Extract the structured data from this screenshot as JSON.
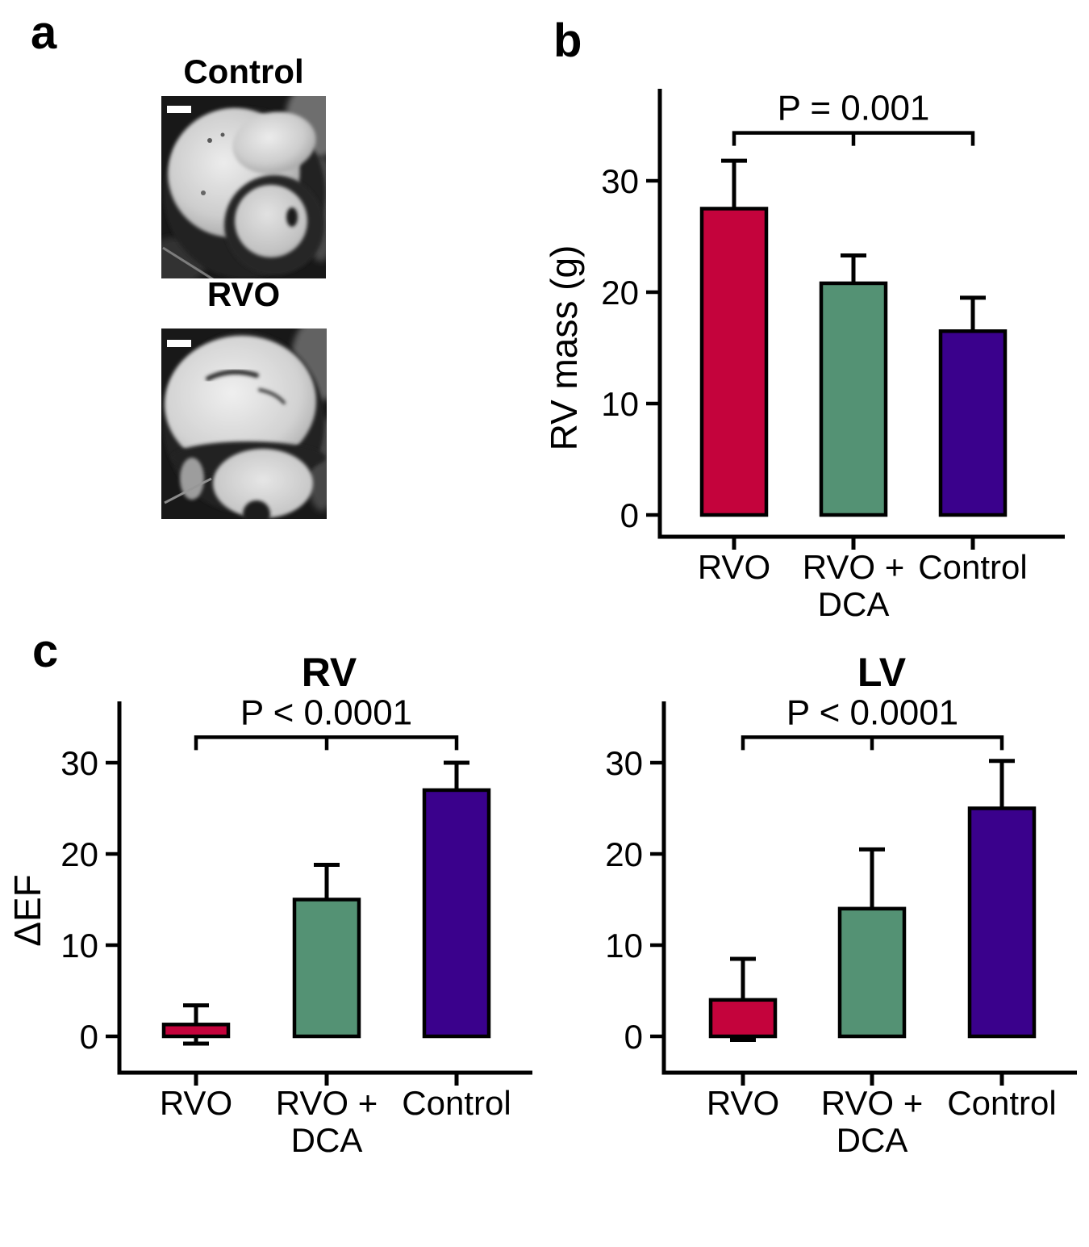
{
  "panel_a": {
    "label": "a",
    "image1_title": "Control",
    "image2_title": "RVO"
  },
  "panel_b": {
    "label": "b"
  },
  "panel_c": {
    "label": "c"
  },
  "colors": {
    "rvo_bar": "#c4033c",
    "rvo_dca_bar": "#549274",
    "control_bar": "#3a018c",
    "axis": "#000000",
    "scale_bar": "#ffffff"
  },
  "chart_data": [
    {
      "id": "rv_mass",
      "panel": "b",
      "type": "bar",
      "title": "",
      "ylabel": "RV mass (g)",
      "xlabel": "",
      "categories": [
        "RVO",
        "RVO +\nDCA",
        "Control"
      ],
      "values": [
        27.5,
        20.8,
        16.5
      ],
      "errors_up": [
        4.3,
        2.5,
        3.0
      ],
      "errors_down": [
        0,
        0,
        0
      ],
      "bar_colors": [
        "#c4033c",
        "#549274",
        "#3a018c"
      ],
      "yticks": [
        0,
        10,
        20,
        30
      ],
      "ylim": [
        -2,
        38
      ],
      "grid": false,
      "legend": "none",
      "significance": {
        "label": "P = 0.001",
        "from": 0,
        "to": 2,
        "mid_tick": 1,
        "y_value": 34.3
      }
    },
    {
      "id": "delta_ef_rv",
      "panel": "c",
      "type": "bar",
      "title": "RV",
      "ylabel": "ΔEF",
      "xlabel": "",
      "categories": [
        "RVO",
        "RVO +\nDCA",
        "Control"
      ],
      "values": [
        1.3,
        15,
        27
      ],
      "errors_up": [
        2.1,
        3.8,
        3.0
      ],
      "errors_down": [
        2.1,
        0,
        0
      ],
      "bar_colors": [
        "#c4033c",
        "#549274",
        "#3a018c"
      ],
      "yticks": [
        0,
        10,
        20,
        30
      ],
      "ylim": [
        -4,
        37
      ],
      "grid": false,
      "legend": "none",
      "significance": {
        "label": "P < 0.0001",
        "from": 0,
        "to": 2,
        "mid_tick": 1,
        "y_value": 32.8
      }
    },
    {
      "id": "delta_ef_lv",
      "panel": "c",
      "type": "bar",
      "title": "LV",
      "ylabel": "",
      "xlabel": "",
      "categories": [
        "RVO",
        "RVO +\nDCA",
        "Control"
      ],
      "values": [
        4,
        14,
        25
      ],
      "errors_up": [
        4.5,
        6.5,
        5.2
      ],
      "errors_down": [
        4.4,
        0,
        0
      ],
      "bar_colors": [
        "#c4033c",
        "#549274",
        "#3a018c"
      ],
      "yticks": [
        0,
        10,
        20,
        30
      ],
      "ylim": [
        -4,
        37
      ],
      "grid": false,
      "legend": "none",
      "significance": {
        "label": "P < 0.0001",
        "from": 0,
        "to": 2,
        "mid_tick": 1,
        "y_value": 32.8
      }
    }
  ]
}
